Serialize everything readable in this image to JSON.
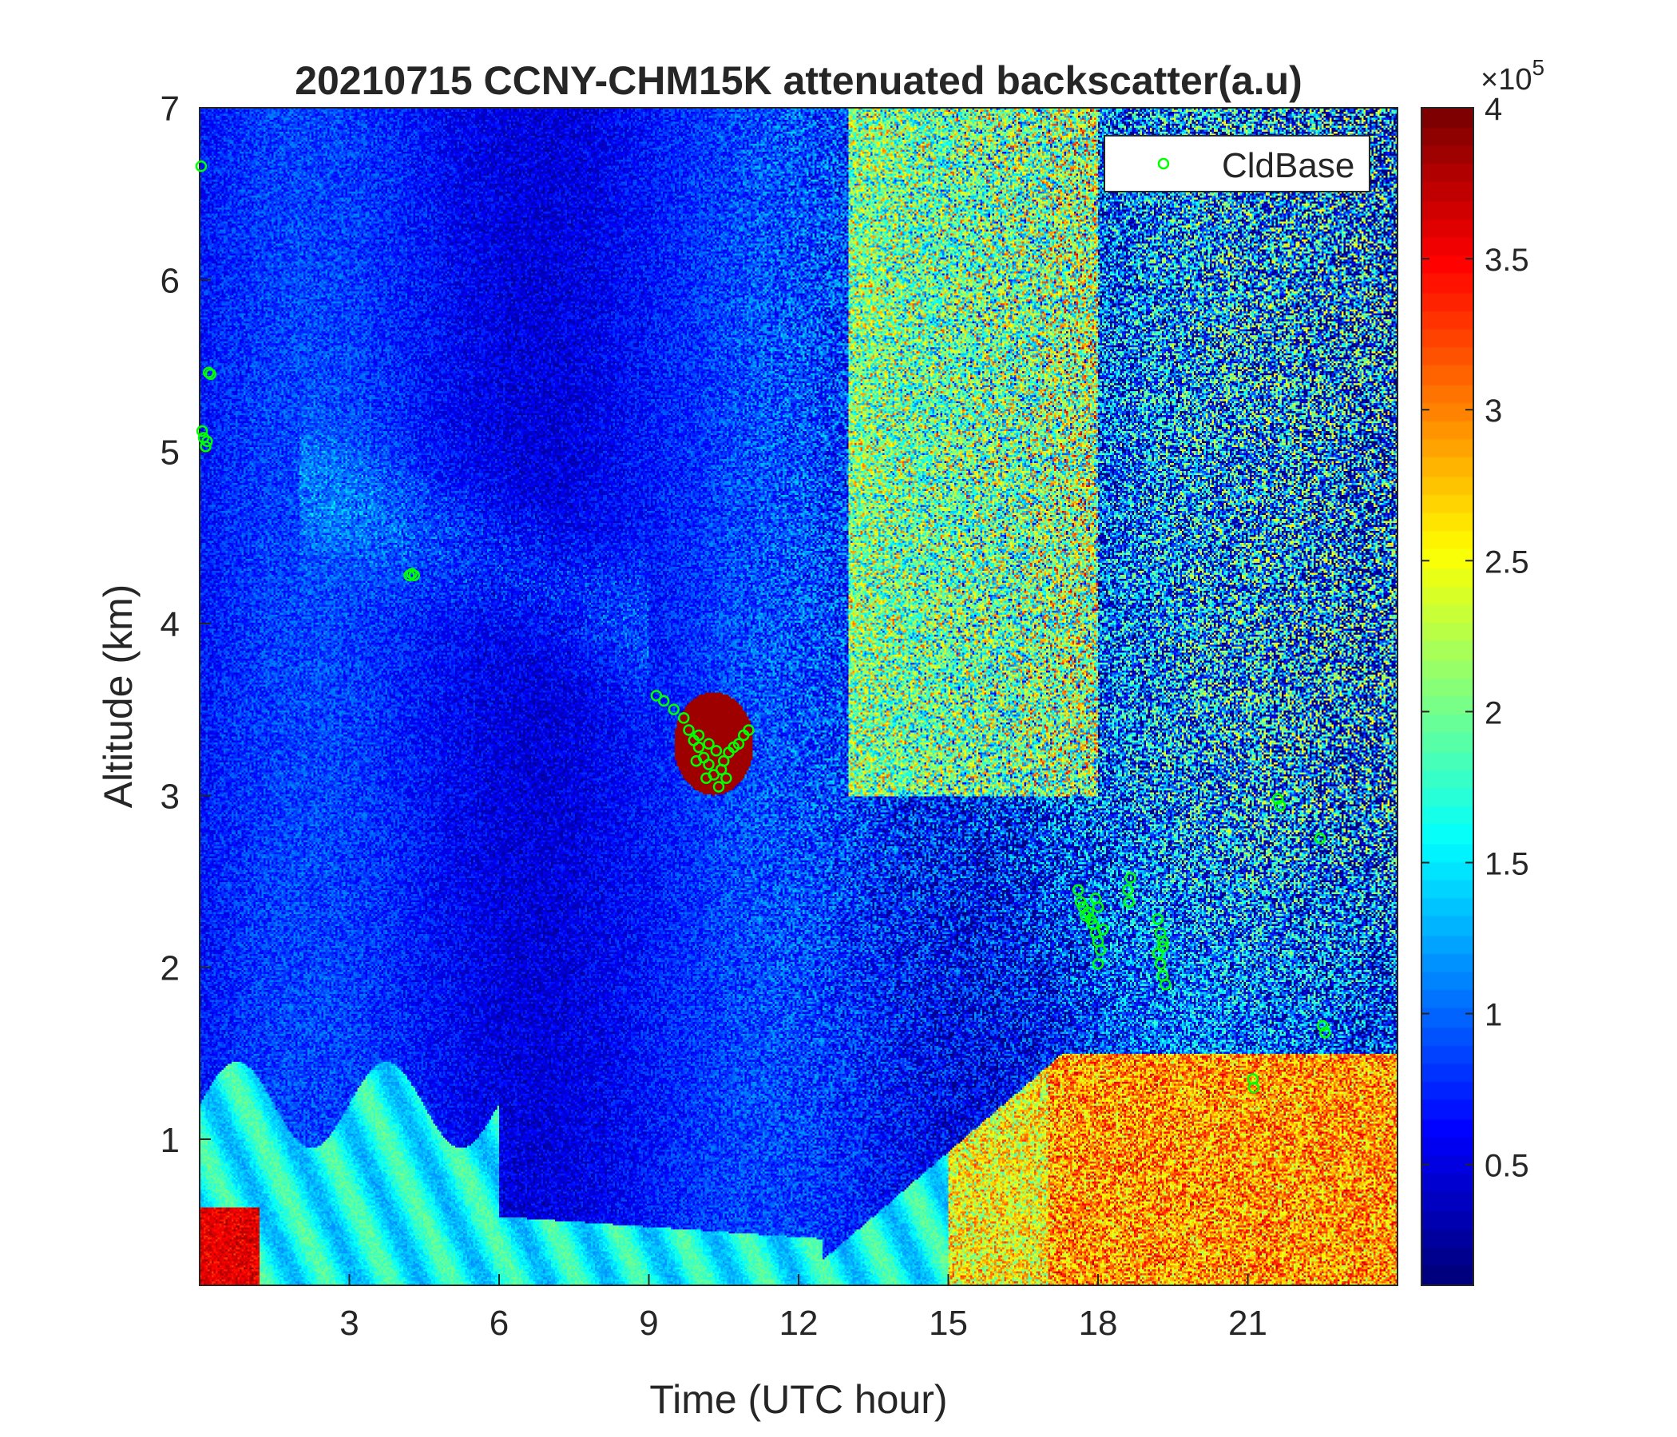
{
  "chart_data": {
    "type": "heatmap",
    "title": "20210715 CCNY-CHM15K attenuated backscatter(a.u)",
    "xlabel": "Time (UTC hour)",
    "ylabel": "Altitude (km)",
    "xlim": [
      0,
      24
    ],
    "ylim": [
      0.15,
      7
    ],
    "xticks": [
      3,
      6,
      9,
      12,
      15,
      18,
      21
    ],
    "yticks": [
      1,
      2,
      3,
      4,
      5,
      6,
      7
    ],
    "colorbar": {
      "colormap": "jet",
      "clim": [
        0.1,
        4
      ],
      "ticks": [
        0.5,
        1,
        1.5,
        2,
        2.5,
        3,
        3.5,
        4
      ],
      "exponent_label": "×10",
      "exponent": "5"
    },
    "legend": {
      "position": "top-right",
      "entries": [
        "CldBase"
      ],
      "marker_color": "#00ff00"
    },
    "series": [
      {
        "name": "CldBase",
        "kind": "scatter",
        "marker": "circle-open",
        "color": "#00ff00",
        "points": [
          [
            0.03,
            6.66
          ],
          [
            0.05,
            5.12
          ],
          [
            0.08,
            5.08
          ],
          [
            0.12,
            5.03
          ],
          [
            0.15,
            5.06
          ],
          [
            0.18,
            5.46
          ],
          [
            0.22,
            5.45
          ],
          [
            4.2,
            4.28
          ],
          [
            4.25,
            4.29
          ],
          [
            4.3,
            4.28
          ],
          [
            9.15,
            3.58
          ],
          [
            9.3,
            3.55
          ],
          [
            9.5,
            3.5
          ],
          [
            9.7,
            3.45
          ],
          [
            9.8,
            3.38
          ],
          [
            9.9,
            3.32
          ],
          [
            10.0,
            3.28
          ],
          [
            10.1,
            3.22
          ],
          [
            10.2,
            3.18
          ],
          [
            10.3,
            3.12
          ],
          [
            10.4,
            3.05
          ],
          [
            10.45,
            3.15
          ],
          [
            10.5,
            3.2
          ],
          [
            10.55,
            3.1
          ],
          [
            10.6,
            3.25
          ],
          [
            10.7,
            3.28
          ],
          [
            10.8,
            3.3
          ],
          [
            10.9,
            3.35
          ],
          [
            11.0,
            3.38
          ],
          [
            10.0,
            3.35
          ],
          [
            10.2,
            3.3
          ],
          [
            10.35,
            3.26
          ],
          [
            9.95,
            3.2
          ],
          [
            10.15,
            3.1
          ],
          [
            17.6,
            2.45
          ],
          [
            17.65,
            2.38
          ],
          [
            17.7,
            2.35
          ],
          [
            17.75,
            2.3
          ],
          [
            17.8,
            2.32
          ],
          [
            17.85,
            2.28
          ],
          [
            17.9,
            2.25
          ],
          [
            17.95,
            2.2
          ],
          [
            18.0,
            2.15
          ],
          [
            18.0,
            2.35
          ],
          [
            18.05,
            2.1
          ],
          [
            18.0,
            2.02
          ],
          [
            17.95,
            2.4
          ],
          [
            18.1,
            2.22
          ],
          [
            18.6,
            2.45
          ],
          [
            18.62,
            2.38
          ],
          [
            18.65,
            2.52
          ],
          [
            19.2,
            2.28
          ],
          [
            19.25,
            2.2
          ],
          [
            19.3,
            2.15
          ],
          [
            19.2,
            2.08
          ],
          [
            19.25,
            2.02
          ],
          [
            19.3,
            1.95
          ],
          [
            19.35,
            1.9
          ],
          [
            19.3,
            2.12
          ],
          [
            21.1,
            1.35
          ],
          [
            21.12,
            1.3
          ],
          [
            21.6,
            2.98
          ],
          [
            21.65,
            2.94
          ],
          [
            22.45,
            2.75
          ],
          [
            22.5,
            1.66
          ],
          [
            22.55,
            1.62
          ]
        ]
      }
    ],
    "features": {
      "low_aerosol_layer_km": [
        0.15,
        1.5
      ],
      "cloud_patch_hours": [
        9,
        11
      ],
      "cloud_patch_km": [
        3.0,
        3.6
      ],
      "high_noise_region_hours": [
        12,
        24
      ],
      "afternoon_boundary_layer_top_km": 1.5
    }
  }
}
